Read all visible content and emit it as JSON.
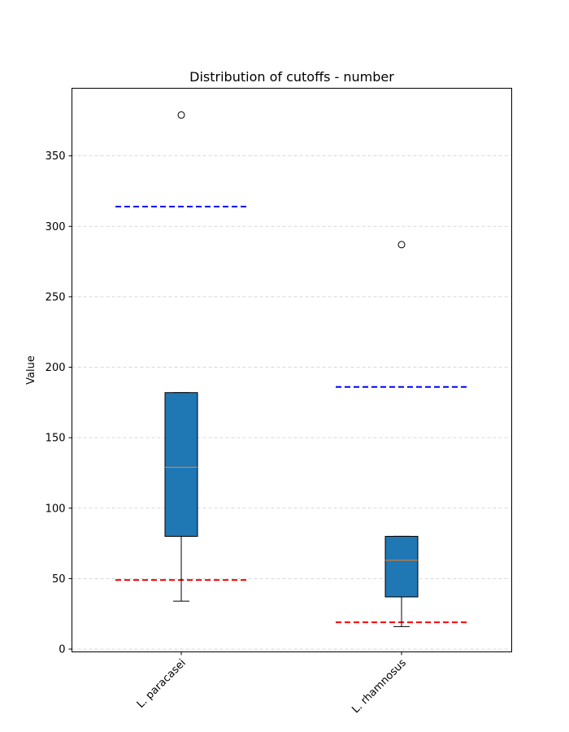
{
  "chart_data": {
    "type": "box",
    "title": "Distribution of cutoffs - number",
    "xlabel": "",
    "ylabel": "Value",
    "ylim": [
      -2,
      398
    ],
    "yticks": [
      0,
      50,
      100,
      150,
      200,
      250,
      300,
      350
    ],
    "grid": "y, dashed",
    "categories": [
      "L. paracasei",
      "L. rhamnosus"
    ],
    "boxes": [
      {
        "category": "L. paracasei",
        "whisker_low": 34,
        "q1": 80,
        "median": 129,
        "q3": 182,
        "whisker_high": 182,
        "outliers": [
          379
        ]
      },
      {
        "category": "L. rhamnosus",
        "whisker_low": 16,
        "q1": 37,
        "median": 63,
        "q3": 80,
        "whisker_high": 80,
        "outliers": [
          287
        ]
      }
    ],
    "reference_lines": [
      {
        "category": "L. paracasei",
        "lower": 49,
        "upper": 314
      },
      {
        "category": "L. rhamnosus",
        "lower": 19,
        "upper": 186
      }
    ],
    "colors": {
      "box_fill": "#1f77b4",
      "median": "#ff7f0e",
      "upper_line": "#0000ff",
      "lower_line": "#ff0000",
      "grid": "#cccccc"
    }
  }
}
